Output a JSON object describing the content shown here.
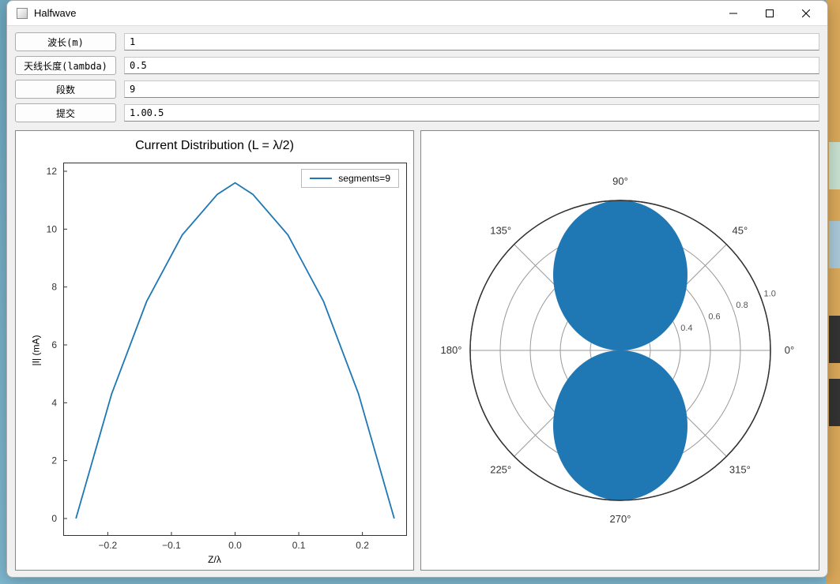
{
  "window": {
    "title": "Halfwave"
  },
  "form": {
    "wavelength_btn": "波长(m)",
    "wavelength_val": "1",
    "antenna_len_btn": "天线长度(lambda)",
    "antenna_len_val": "0.5",
    "segments_btn": "段数",
    "segments_val": "9",
    "submit_btn": "提交",
    "result_val": "1.00.5"
  },
  "line_chart": {
    "type": "line",
    "title": "Current Distribution (L = λ/2)",
    "ylabel": "|I| (mA)",
    "xlabel": "Z/λ",
    "legend_label": "segments=9",
    "line_color": "#1f77b4",
    "line_width": 1.8,
    "x": [
      -0.25,
      -0.194,
      -0.139,
      -0.083,
      -0.028,
      0.0,
      0.028,
      0.083,
      0.139,
      0.194,
      0.25
    ],
    "y": [
      0.0,
      4.3,
      7.5,
      9.8,
      11.2,
      11.6,
      11.2,
      9.8,
      7.5,
      4.3,
      0.0
    ],
    "xlim": [
      -0.27,
      0.27
    ],
    "ylim": [
      -0.6,
      12.3
    ],
    "xticks": [
      -0.2,
      -0.1,
      0.0,
      0.1,
      0.2
    ],
    "xticklabels": [
      "−0.2",
      "−0.1",
      "0.0",
      "0.1",
      "0.2"
    ],
    "yticks": [
      0,
      2,
      4,
      6,
      8,
      10,
      12
    ],
    "background_color": "#ffffff",
    "axis_color": "#333333",
    "title_fontsize": 16,
    "label_fontsize": 12
  },
  "polar_chart": {
    "type": "polar",
    "fill_color": "#1f77b4",
    "circle_color": "#999999",
    "outer_circle_color": "#333333",
    "angle_labels": [
      "0°",
      "45°",
      "90°",
      "135°",
      "180°",
      "225°",
      "270°",
      "315°"
    ],
    "r_labels": [
      "0.4",
      "0.6",
      "0.8",
      "1.0"
    ],
    "r_max": 1.0,
    "r_ticks": [
      0.2,
      0.4,
      0.6,
      0.8,
      1.0
    ],
    "angle_ticks_deg": [
      0,
      45,
      90,
      135,
      180,
      225,
      270,
      315
    ],
    "pattern_formula": "dipole_halfwave",
    "background_color": "#ffffff",
    "label_fontsize": 13
  }
}
